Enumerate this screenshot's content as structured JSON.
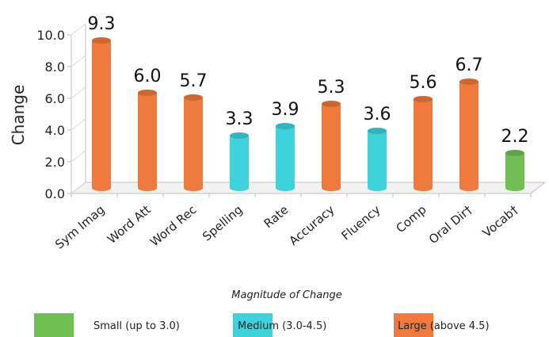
{
  "chart_data": {
    "type": "bar",
    "categories": [
      "Sym Imag",
      "Word Att",
      "Word Rec",
      "Spelling",
      "Rate",
      "Accuracy",
      "Fluency",
      "Comp",
      "Oral Dir†",
      "Vocab†"
    ],
    "values": [
      9.3,
      6.0,
      5.7,
      3.3,
      3.9,
      5.3,
      3.6,
      5.6,
      6.7,
      2.2
    ],
    "data_labels": [
      "9.3",
      "6.0",
      "5.7",
      "3.3",
      "3.9",
      "5.3",
      "3.6",
      "5.6",
      "6.7",
      "2.2"
    ],
    "magnitude": [
      "large",
      "large",
      "large",
      "medium",
      "medium",
      "large",
      "medium",
      "large",
      "large",
      "small"
    ],
    "ylabel": "Change",
    "xlabel": "",
    "ylim": [
      0,
      10
    ],
    "yticks": [
      0,
      2,
      4,
      6,
      8,
      10
    ],
    "ytick_labels": [
      "0.0",
      "2.0",
      "4.0",
      "6.0",
      "8.0",
      "10.0"
    ],
    "grid": false,
    "legend": {
      "title": "Magnitude of Change",
      "position": "bottom",
      "items": [
        {
          "key": "small",
          "label": "Small (up to 3.0)",
          "color": "#70bf55"
        },
        {
          "key": "medium",
          "label": "Medium (3.0-4.5)",
          "color": "#3ed2dc"
        },
        {
          "key": "large",
          "label": "Large (above 4.5)",
          "color": "#ef7a3b"
        }
      ]
    }
  }
}
